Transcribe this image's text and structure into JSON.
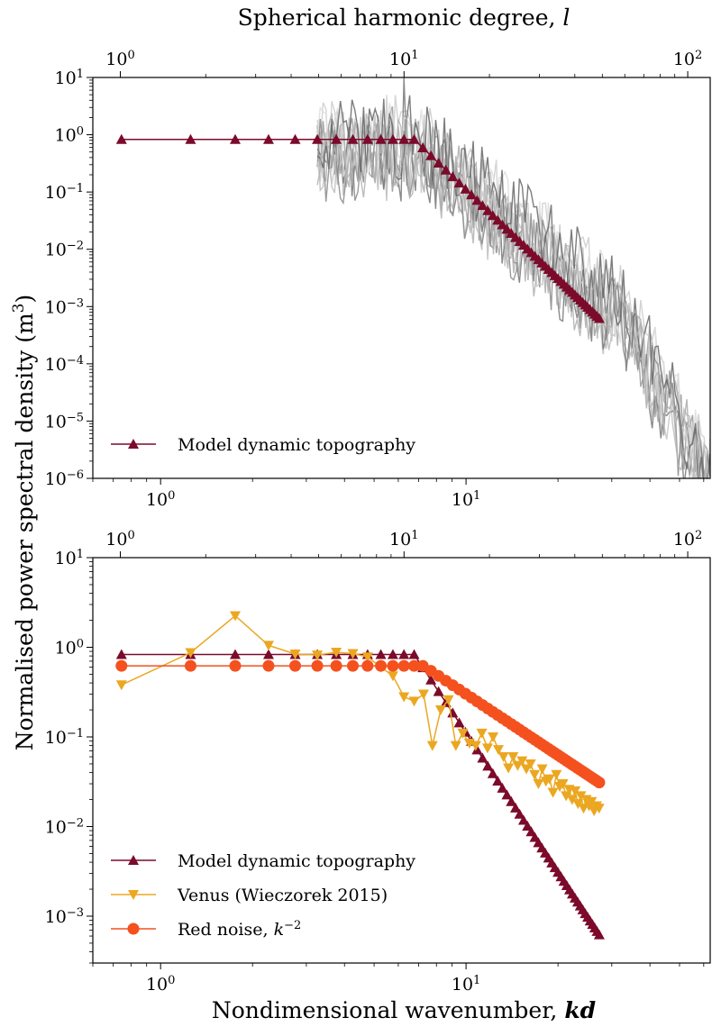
{
  "figure": {
    "top_xlabel_prefix": "Spherical harmonic degree, ",
    "top_xlabel_var": "l",
    "ylabel_text": "Normalised power spectral density (m",
    "ylabel_sup": "3",
    "ylabel_end": ")",
    "xlabel_text": "Nondimensional wavenumber, ",
    "xlabel_var": "kd"
  },
  "chart_data": [
    {
      "type": "line",
      "panel": "top",
      "x_scale": "log",
      "y_scale": "log",
      "xlim": [
        0.6,
        63
      ],
      "ylim": [
        1e-06,
        10
      ],
      "x_ticks": [
        "10^0",
        "10^1"
      ],
      "y_ticks": [
        "10^-6",
        "10^-5",
        "10^-4",
        "10^-3",
        "10^-2",
        "10^-1",
        "10^0",
        "10^1"
      ],
      "top_axis": {
        "label": "Spherical harmonic degree, l",
        "ticks": [
          "10^0",
          "10^1",
          "10^2"
        ]
      },
      "legend_placement": "lower-left",
      "grid": false,
      "series": [
        {
          "name": "Model dynamic topography",
          "color": "#7b0a2b",
          "marker": "triangle-up",
          "x_plateau": [
            0.7447,
            1.2536,
            1.7553,
            2.2566,
            2.7578,
            3.2587,
            3.7595,
            4.2601,
            4.7606,
            5.261,
            5.7614,
            6.2617,
            6.762
          ],
          "plateau_value": 0.83,
          "power_law_from_x": 6.762,
          "power_law_to_x": 27.3,
          "power_law_end_value": 0.00062,
          "power_law_points": 45
        },
        {
          "name": "",
          "color": "#888888",
          "style": "faint grey curves",
          "x_range": [
            3.26,
            63
          ],
          "peak": {
            "x": 6.2,
            "y": 10
          },
          "note_values": "envelope roughly follows model above kd 7 and falls to below 1e-6 near kd 45"
        }
      ]
    },
    {
      "type": "line",
      "panel": "bottom",
      "x_scale": "log",
      "y_scale": "log",
      "xlim": [
        0.6,
        63
      ],
      "ylim": [
        0.0003,
        10
      ],
      "x_ticks": [
        "10^0",
        "10^1"
      ],
      "y_ticks": [
        "10^-3",
        "10^-2",
        "10^-1",
        "10^0",
        "10^1"
      ],
      "top_axis": {
        "ticks": [
          "10^0",
          "10^1",
          "10^2"
        ]
      },
      "legend_placement": "lower-left",
      "grid": false,
      "series": [
        {
          "name": "Model dynamic topography",
          "color": "#7b0a2b",
          "marker": "triangle-up",
          "plateau_value": 0.83,
          "power_law_end_value": 0.00062
        },
        {
          "name": "Venus (Wieczorek 2015)",
          "color": "#eba721",
          "marker": "triangle-down",
          "x": [
            0.7447,
            1.2536,
            1.7553,
            2.2566,
            2.7578,
            3.2587,
            3.7595,
            4.2601,
            4.7606,
            5.261,
            5.7614,
            6.2617,
            6.762,
            7.26,
            7.76,
            8.26,
            8.76,
            9.26,
            9.76,
            10.26,
            10.76,
            11.26,
            11.76,
            12.26,
            12.76,
            13.26,
            13.76,
            14.26,
            14.76,
            15.26,
            15.76,
            16.26,
            16.76,
            17.26,
            17.76,
            18.26,
            18.76,
            19.26,
            19.76,
            20.26,
            20.76,
            21.26,
            21.76,
            22.26,
            22.76,
            23.26,
            23.76,
            24.26,
            24.76,
            25.26,
            25.76,
            26.26,
            26.76,
            27.26
          ],
          "y": [
            0.38,
            0.87,
            2.25,
            1.05,
            0.84,
            0.82,
            0.88,
            0.85,
            0.78,
            0.6,
            0.48,
            0.28,
            0.25,
            0.3,
            0.08,
            0.2,
            0.26,
            0.08,
            0.11,
            0.085,
            0.08,
            0.11,
            0.075,
            0.1,
            0.072,
            0.06,
            0.045,
            0.06,
            0.048,
            0.054,
            0.044,
            0.05,
            0.038,
            0.03,
            0.044,
            0.032,
            0.034,
            0.024,
            0.038,
            0.028,
            0.03,
            0.022,
            0.026,
            0.02,
            0.025,
            0.018,
            0.022,
            0.016,
            0.02,
            0.017,
            0.019,
            0.015,
            0.017,
            0.016
          ]
        },
        {
          "name": "Red noise, k^-2",
          "color": "#f4511e",
          "marker": "circle",
          "plateau_value": 0.62,
          "end_value": 0.031
        }
      ]
    }
  ]
}
